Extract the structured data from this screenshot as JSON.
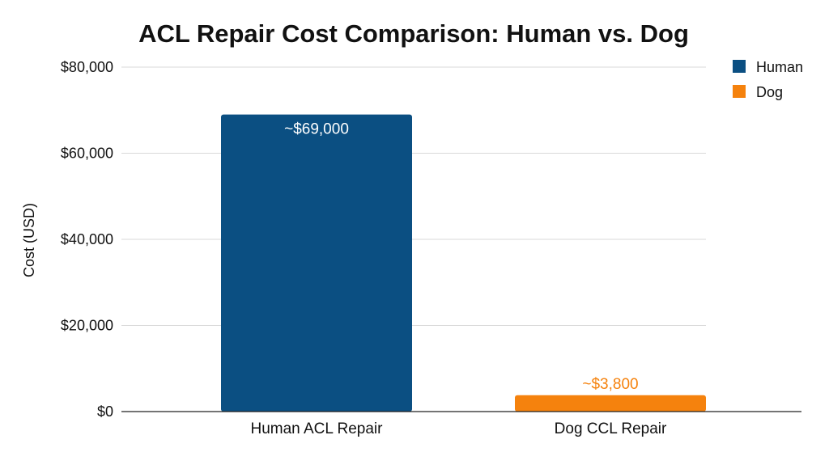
{
  "chart_data": {
    "type": "bar",
    "title": "ACL Repair Cost Comparison: Human vs. Dog",
    "xlabel": "",
    "ylabel": "Cost (USD)",
    "ylim": [
      0,
      80000
    ],
    "yticks": [
      0,
      20000,
      40000,
      60000,
      80000
    ],
    "ytick_labels": [
      "$0",
      "$20,000",
      "$40,000",
      "$60,000",
      "$80,000"
    ],
    "grid": true,
    "legend_position": "top-right",
    "categories": [
      "Human ACL Repair",
      "Dog CCL Repair"
    ],
    "series": [
      {
        "name": "Human",
        "color": "#0b4f82",
        "values": [
          69000,
          null
        ]
      },
      {
        "name": "Dog",
        "color": "#f5820d",
        "values": [
          null,
          3800
        ]
      }
    ],
    "data_labels": [
      "~$69,000",
      "~$3,800"
    ]
  }
}
